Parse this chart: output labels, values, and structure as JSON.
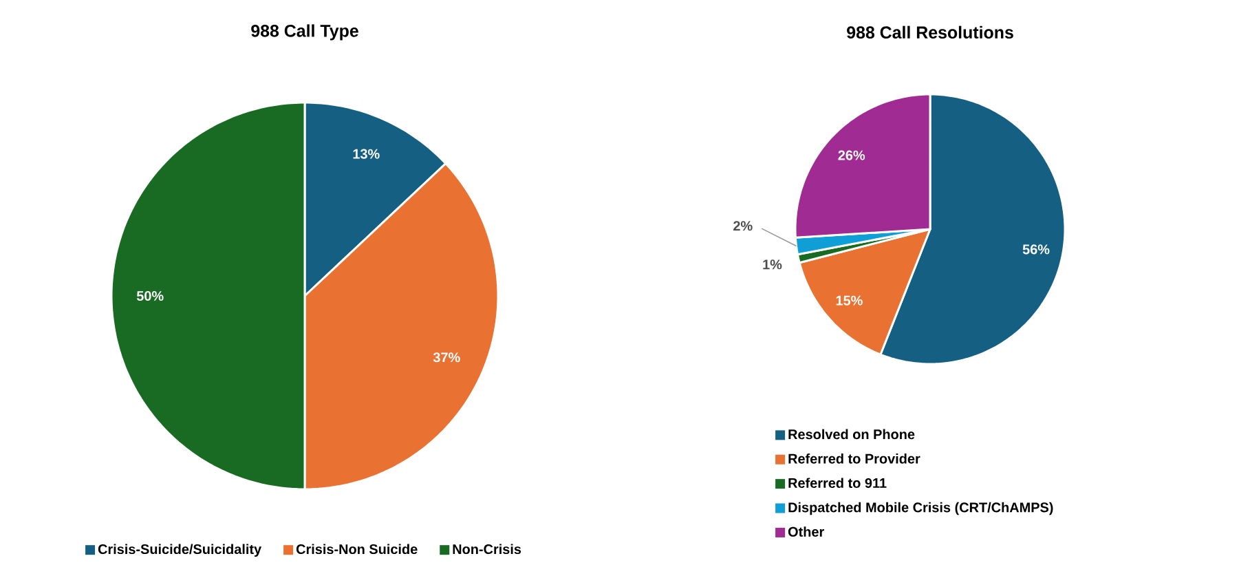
{
  "chart_data": [
    {
      "type": "pie",
      "title": "988 Call Type",
      "categories": [
        "Crisis-Suicide/Suicidality",
        "Crisis-Non Suicide",
        "Non-Crisis"
      ],
      "values": [
        13,
        37,
        50
      ],
      "value_labels": [
        "13%",
        "37%",
        "50%"
      ],
      "colors": [
        "#156082",
        "#e97132",
        "#196b24"
      ],
      "legend": "bottom"
    },
    {
      "type": "pie",
      "title": "988 Call Resolutions",
      "categories": [
        "Resolved on Phone",
        "Referred to Provider",
        "Referred to 911",
        "Dispatched Mobile Crisis (CRT/ChAMPS)",
        "Other"
      ],
      "values": [
        56,
        15,
        1,
        2,
        26
      ],
      "value_labels": [
        "56%",
        "15%",
        "1%",
        "2%",
        "26%"
      ],
      "colors": [
        "#156082",
        "#e97132",
        "#196b24",
        "#0f9ed5",
        "#a02b93"
      ],
      "legend": "bottom"
    }
  ]
}
